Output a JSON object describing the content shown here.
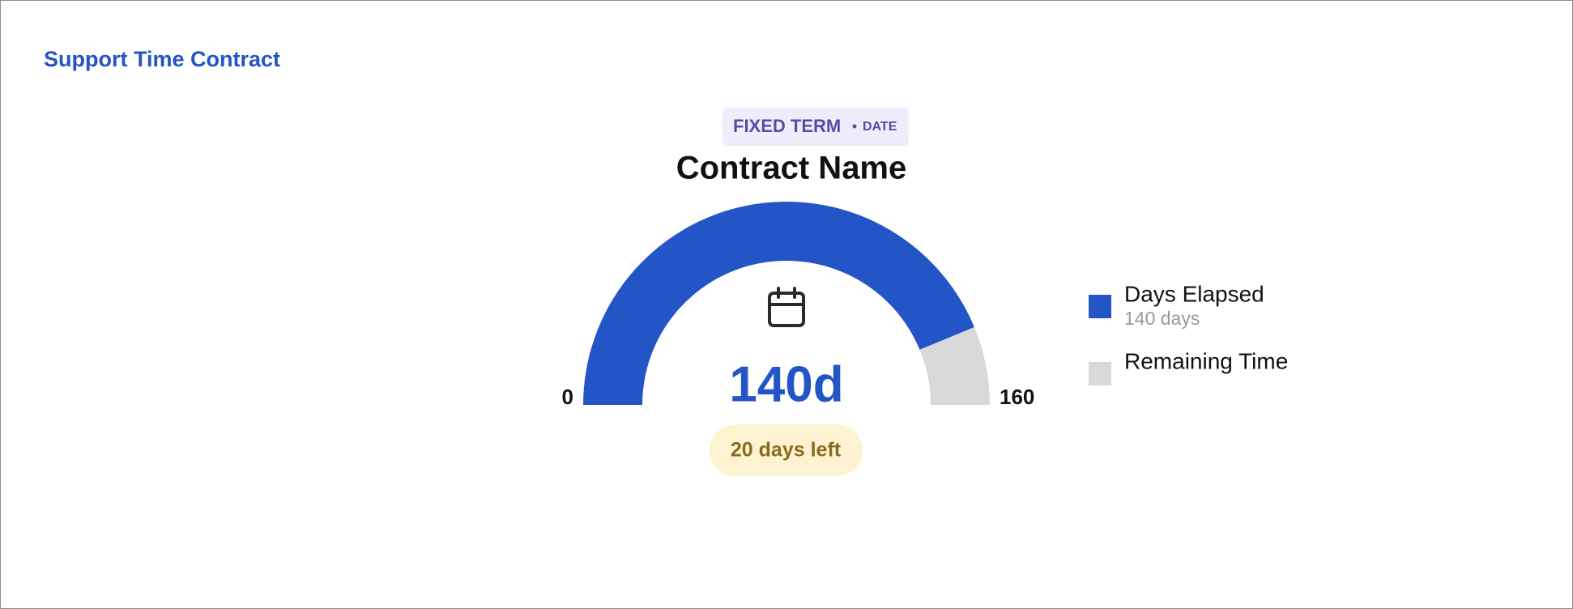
{
  "header": {
    "title": "Support Time Contract"
  },
  "chart_data": {
    "type": "gauge",
    "badge": "FIXED TERM",
    "badge_sub": "DATE",
    "title": "Contract Name",
    "value": 140,
    "value_label": "140d",
    "note": "20 days left",
    "ylim": [
      0,
      160
    ],
    "yticks": [
      0,
      160
    ],
    "series": [
      {
        "name": "Days Elapsed",
        "detail": "140 days",
        "color": "#2355c6",
        "values": [
          140
        ]
      },
      {
        "name": "Remaining Time",
        "color": "#d9d9d9",
        "values": [
          20
        ]
      }
    ]
  }
}
